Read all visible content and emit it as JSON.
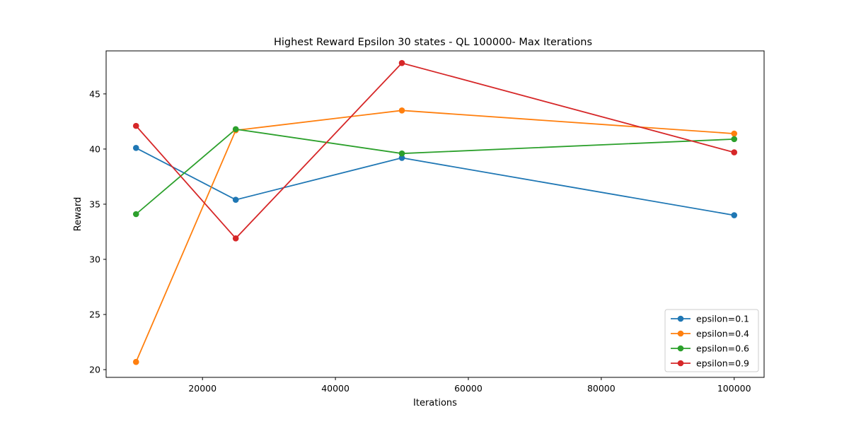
{
  "chart_data": {
    "type": "line",
    "title": "Highest Reward Epsilon 30 states - QL 100000- Max Iterations",
    "xlabel": "Iterations",
    "ylabel": "Reward",
    "x": [
      10000,
      25000,
      50000,
      100000
    ],
    "xlim": [
      5500,
      104500
    ],
    "ylim": [
      19.3,
      48.9
    ],
    "xticks": [
      20000,
      40000,
      60000,
      80000,
      100000
    ],
    "yticks": [
      20,
      25,
      30,
      35,
      40,
      45
    ],
    "grid": false,
    "legend_position": "lower right",
    "series": [
      {
        "name": "epsilon=0.1",
        "color": "#1f77b4",
        "values": [
          40.1,
          35.4,
          39.2,
          34.0
        ]
      },
      {
        "name": "epsilon=0.4",
        "color": "#ff7f0e",
        "values": [
          20.7,
          41.7,
          43.5,
          41.4
        ]
      },
      {
        "name": "epsilon=0.6",
        "color": "#2ca02c",
        "values": [
          34.1,
          41.8,
          39.6,
          40.9
        ]
      },
      {
        "name": "epsilon=0.9",
        "color": "#d62728",
        "values": [
          42.1,
          31.9,
          47.8,
          39.7
        ]
      }
    ]
  }
}
